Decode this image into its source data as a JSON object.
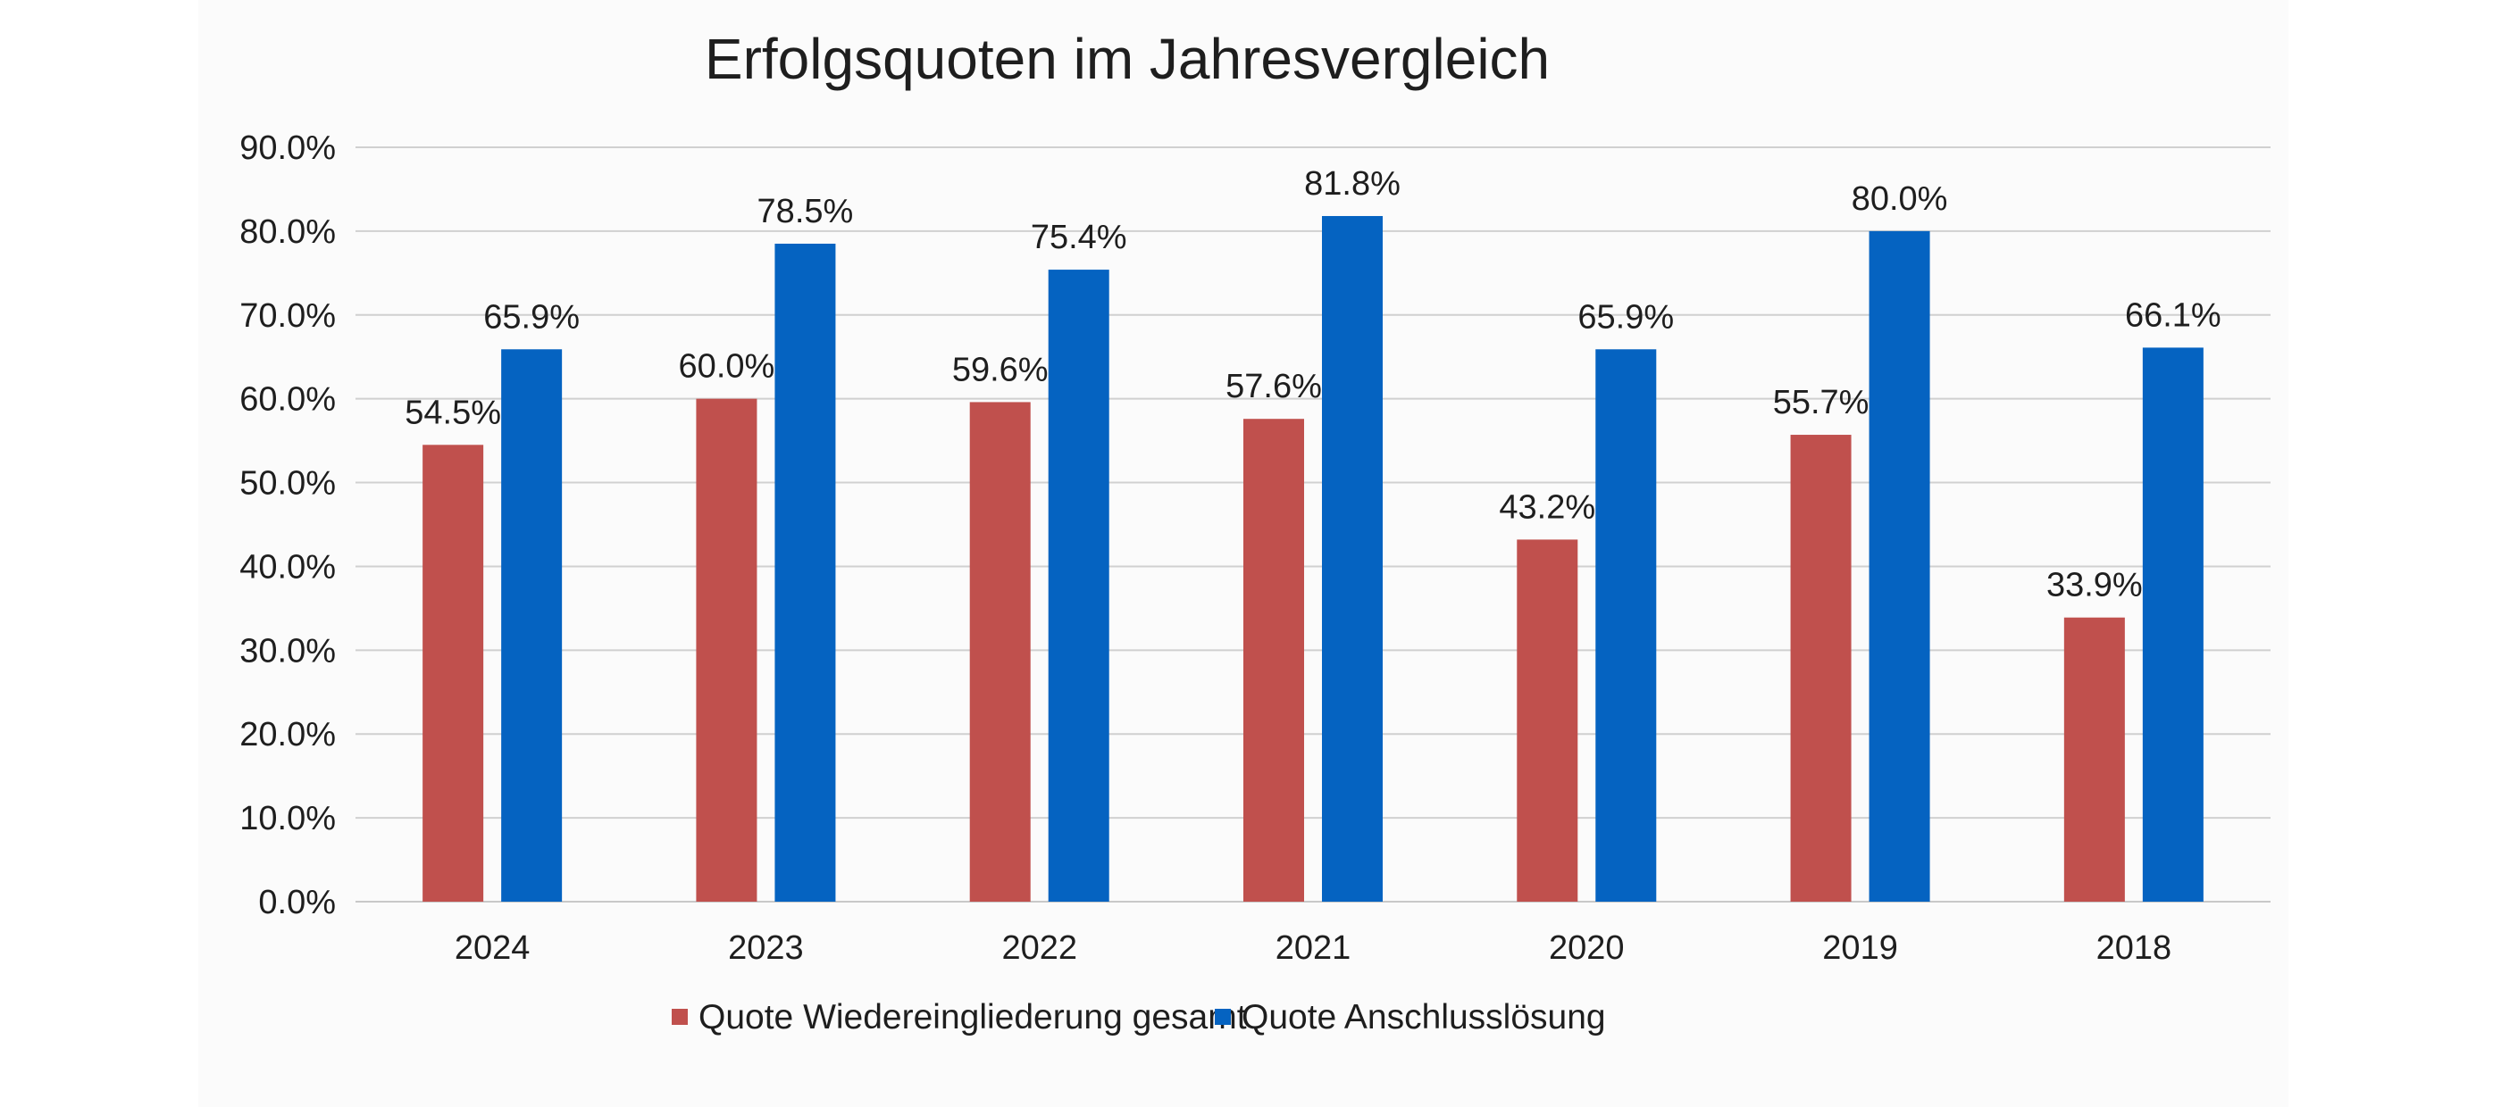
{
  "chart_data": {
    "type": "bar",
    "title": "Erfolgsquoten im Jahresvergleich",
    "xlabel": "",
    "ylabel": "",
    "categories": [
      "2024",
      "2023",
      "2022",
      "2021",
      "2020",
      "2019",
      "2018"
    ],
    "series": [
      {
        "name": "Quote Wiedereingliederung gesamt",
        "color": "#c0504d",
        "values": [
          54.5,
          60.0,
          59.6,
          57.6,
          43.2,
          55.7,
          33.9
        ],
        "labels": [
          "54.5%",
          "60.0%",
          "59.6%",
          "57.6%",
          "43.2%",
          "55.7%",
          "33.9%"
        ]
      },
      {
        "name": "Quote Anschlusslösung",
        "color": "#0563c1",
        "values": [
          65.9,
          78.5,
          75.4,
          81.8,
          65.9,
          80.0,
          66.1
        ],
        "labels": [
          "65.9%",
          "78.5%",
          "75.4%",
          "81.8%",
          "65.9%",
          "80.0%",
          "66.1%"
        ]
      }
    ],
    "ylim": [
      0,
      90
    ],
    "yticks": [
      0,
      10,
      20,
      30,
      40,
      50,
      60,
      70,
      80,
      90
    ],
    "ytick_labels": [
      "0.0%",
      "10.0%",
      "20.0%",
      "30.0%",
      "40.0%",
      "50.0%",
      "60.0%",
      "70.0%",
      "80.0%",
      "90.0%"
    ],
    "grid": true,
    "legend": "bottom"
  }
}
